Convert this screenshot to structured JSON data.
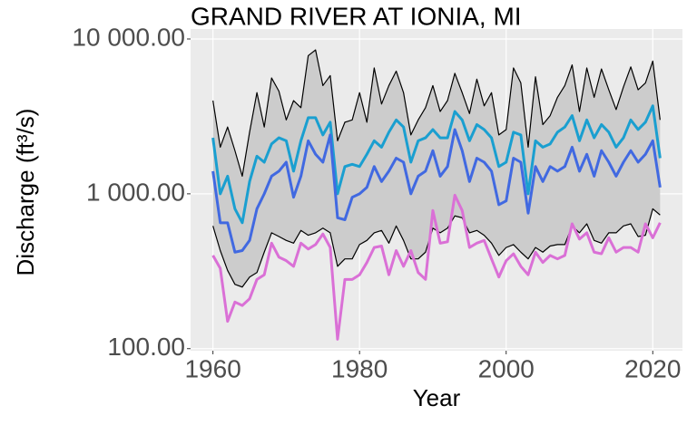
{
  "chart_data": {
    "type": "line",
    "title": "GRAND RIVER AT IONIA, MI",
    "x_label": "Year",
    "y_label": "Discharge (ft³/s)",
    "log_y": true,
    "grid": true,
    "xlim": [
      1956.95,
      2024.05
    ],
    "xticks": [
      1960,
      1980,
      2000,
      2020
    ],
    "ylim": [
      97,
      11600
    ],
    "yticks": [
      {
        "value": 100,
        "label": "100.00"
      },
      {
        "value": 1000,
        "label": "1 000.00"
      },
      {
        "value": 10000,
        "label": "10 000.00"
      }
    ],
    "x": [
      1960,
      1961,
      1962,
      1963,
      1964,
      1965,
      1966,
      1967,
      1968,
      1969,
      1970,
      1971,
      1972,
      1973,
      1974,
      1975,
      1976,
      1977,
      1978,
      1979,
      1980,
      1981,
      1982,
      1983,
      1984,
      1985,
      1986,
      1987,
      1988,
      1989,
      1990,
      1991,
      1992,
      1993,
      1994,
      1995,
      1996,
      1997,
      1998,
      1999,
      2000,
      2001,
      2002,
      2003,
      2004,
      2005,
      2006,
      2007,
      2008,
      2009,
      2010,
      2011,
      2012,
      2013,
      2014,
      2015,
      2016,
      2017,
      2018,
      2019,
      2020,
      2021
    ],
    "ribbon": {
      "fill": "#cccccc",
      "line_color": "#000000",
      "upper": [
        4000,
        2000,
        2700,
        1900,
        1300,
        2500,
        4500,
        2700,
        5600,
        4600,
        3000,
        4000,
        3600,
        7800,
        8500,
        5000,
        5800,
        2200,
        2900,
        3000,
        4500,
        2900,
        6500,
        3800,
        5000,
        6200,
        4500,
        2400,
        3000,
        3600,
        5000,
        3400,
        4000,
        6000,
        4500,
        3300,
        5500,
        3700,
        4500,
        2400,
        2600,
        6500,
        5200,
        2000,
        5700,
        2800,
        3200,
        4200,
        5000,
        6800,
        3400,
        6500,
        4200,
        6400,
        4700,
        3500,
        4900,
        6600,
        4700,
        5200,
        7200,
        3000
      ],
      "lower": [
        620,
        430,
        320,
        260,
        250,
        290,
        310,
        420,
        560,
        530,
        500,
        480,
        580,
        540,
        560,
        600,
        560,
        340,
        380,
        380,
        470,
        500,
        560,
        580,
        480,
        620,
        500,
        380,
        380,
        420,
        600,
        560,
        600,
        720,
        700,
        560,
        580,
        540,
        480,
        400,
        450,
        470,
        420,
        380,
        450,
        420,
        460,
        470,
        470,
        620,
        560,
        640,
        500,
        480,
        560,
        560,
        620,
        640,
        530,
        540,
        800,
        730
      ]
    },
    "series": [
      {
        "color": "#1a9fd0",
        "values": [
          2300,
          1000,
          1300,
          800,
          650,
          1200,
          1750,
          1600,
          2100,
          2300,
          2200,
          1400,
          2200,
          3100,
          3100,
          2400,
          2900,
          1000,
          1500,
          1550,
          1500,
          1800,
          2200,
          2000,
          2500,
          3000,
          2700,
          1600,
          2200,
          2300,
          2600,
          2300,
          2300,
          3400,
          3000,
          2200,
          2800,
          2600,
          2300,
          1500,
          1600,
          2500,
          2400,
          1000,
          2200,
          2000,
          2100,
          2500,
          2700,
          3200,
          2200,
          3000,
          2300,
          2800,
          2500,
          2000,
          2300,
          3000,
          2600,
          2900,
          3700,
          1700
        ]
      },
      {
        "color": "#4169e1",
        "values": [
          1400,
          650,
          650,
          420,
          430,
          500,
          800,
          1000,
          1300,
          1400,
          1600,
          950,
          1300,
          2200,
          1800,
          1600,
          2400,
          700,
          680,
          950,
          1000,
          1100,
          1500,
          1200,
          1400,
          1700,
          1600,
          1000,
          1300,
          1400,
          1900,
          1300,
          1500,
          2600,
          1900,
          1200,
          1700,
          1600,
          1400,
          850,
          900,
          1700,
          1600,
          750,
          1500,
          1200,
          1500,
          1400,
          1500,
          2000,
          1400,
          1800,
          1300,
          1900,
          1600,
          1300,
          1600,
          1900,
          1600,
          1800,
          2200,
          1100
        ]
      },
      {
        "color": "#da70d6",
        "values": [
          400,
          330,
          150,
          200,
          190,
          210,
          280,
          300,
          480,
          390,
          370,
          340,
          480,
          440,
          470,
          550,
          450,
          115,
          280,
          280,
          300,
          360,
          450,
          460,
          300,
          430,
          340,
          430,
          310,
          280,
          780,
          480,
          490,
          980,
          780,
          450,
          480,
          500,
          380,
          290,
          370,
          410,
          340,
          300,
          420,
          360,
          400,
          380,
          400,
          640,
          510,
          560,
          420,
          410,
          520,
          420,
          450,
          450,
          420,
          640,
          520,
          650
        ]
      }
    ]
  }
}
